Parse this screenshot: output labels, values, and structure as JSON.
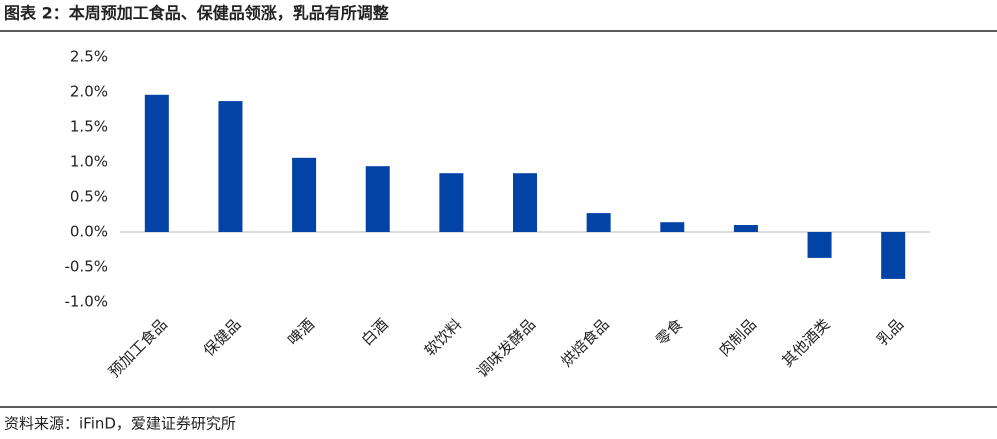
{
  "chart_data": {
    "type": "bar",
    "title": "图表 2：本周预加工食品、保健品领涨，乳品有所调整",
    "source": "资料来源：iFinD，爱建证券研究所",
    "categories": [
      "预加工食品",
      "保健品",
      "啤酒",
      "白酒",
      "软饮料",
      "调味发酵品",
      "烘焙食品",
      "零食",
      "肉制品",
      "其他酒类",
      "乳品"
    ],
    "values": [
      1.96,
      1.87,
      1.06,
      0.94,
      0.84,
      0.84,
      0.27,
      0.14,
      0.1,
      -0.37,
      -0.67
    ],
    "color": "#0343a6",
    "ylim": [
      -1.0,
      2.5
    ],
    "yticks": [
      {
        "value": -1.0,
        "label": "-1.0%"
      },
      {
        "value": -0.5,
        "label": "-0.5%"
      },
      {
        "value": 0.0,
        "label": "0.0%"
      },
      {
        "value": 0.5,
        "label": "0.5%"
      },
      {
        "value": 1.0,
        "label": "1.0%"
      },
      {
        "value": 1.5,
        "label": "1.5%"
      },
      {
        "value": 2.0,
        "label": "2.0%"
      },
      {
        "value": 2.5,
        "label": "2.5%"
      }
    ],
    "grid": false
  }
}
